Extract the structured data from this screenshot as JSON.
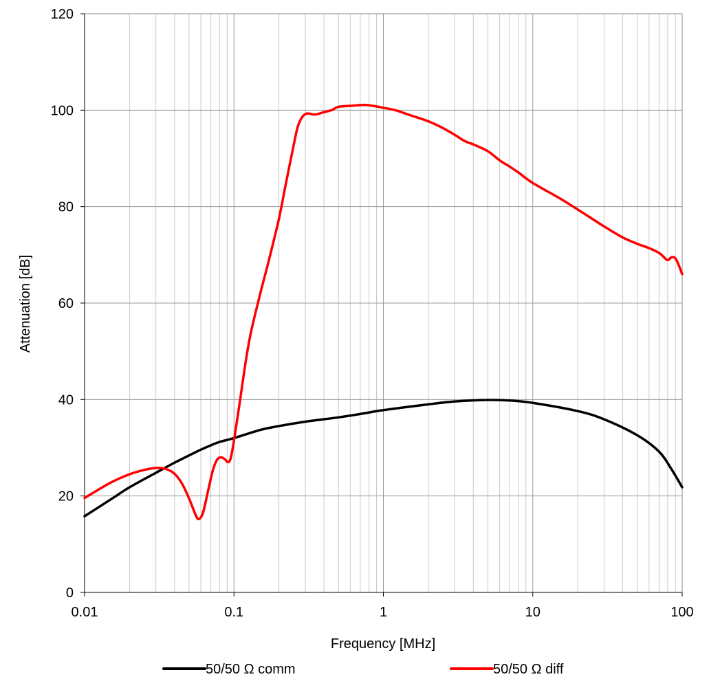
{
  "chart_data": {
    "type": "line",
    "x_scale": "log",
    "xlabel": "Frequency [MHz]",
    "ylabel": "Attenuation [dB]",
    "xlim": [
      0.01,
      100
    ],
    "ylim": [
      0,
      120
    ],
    "x_ticks": [
      0.01,
      0.1,
      1,
      10,
      100
    ],
    "x_tick_labels": [
      "0.01",
      "0.1",
      "1",
      "10",
      "100"
    ],
    "y_ticks": [
      0,
      20,
      40,
      60,
      80,
      100,
      120
    ],
    "y_tick_labels": [
      "0",
      "20",
      "40",
      "60",
      "80",
      "100",
      "120"
    ],
    "grid": true,
    "legend_position": "bottom",
    "series": [
      {
        "name": "50/50 Ω comm",
        "color": "#000000",
        "points": [
          [
            0.01,
            15.8
          ],
          [
            0.015,
            19.3
          ],
          [
            0.02,
            21.8
          ],
          [
            0.03,
            24.8
          ],
          [
            0.04,
            26.9
          ],
          [
            0.05,
            28.4
          ],
          [
            0.06,
            29.6
          ],
          [
            0.07,
            30.5
          ],
          [
            0.08,
            31.2
          ],
          [
            0.1,
            32.0
          ],
          [
            0.15,
            33.7
          ],
          [
            0.2,
            34.5
          ],
          [
            0.3,
            35.4
          ],
          [
            0.5,
            36.3
          ],
          [
            0.7,
            37.0
          ],
          [
            1,
            37.8
          ],
          [
            2,
            39.0
          ],
          [
            3,
            39.6
          ],
          [
            5,
            39.9
          ],
          [
            7,
            39.8
          ],
          [
            10,
            39.3
          ],
          [
            20,
            37.6
          ],
          [
            30,
            35.9
          ],
          [
            50,
            32.6
          ],
          [
            70,
            29.2
          ],
          [
            85,
            25.5
          ],
          [
            100,
            21.8
          ]
        ]
      },
      {
        "name": "50/50 Ω diff",
        "color": "#ff0000",
        "points": [
          [
            0.01,
            19.6
          ],
          [
            0.015,
            22.8
          ],
          [
            0.02,
            24.5
          ],
          [
            0.025,
            25.4
          ],
          [
            0.03,
            25.8
          ],
          [
            0.035,
            25.6
          ],
          [
            0.04,
            24.6
          ],
          [
            0.045,
            22.5
          ],
          [
            0.05,
            19.5
          ],
          [
            0.055,
            16.3
          ],
          [
            0.058,
            15.2
          ],
          [
            0.062,
            16.5
          ],
          [
            0.067,
            21.0
          ],
          [
            0.072,
            25.2
          ],
          [
            0.077,
            27.5
          ],
          [
            0.082,
            28.0
          ],
          [
            0.087,
            27.6
          ],
          [
            0.091,
            27.0
          ],
          [
            0.095,
            27.8
          ],
          [
            0.1,
            31.5
          ],
          [
            0.11,
            40.0
          ],
          [
            0.12,
            48.0
          ],
          [
            0.13,
            54.0
          ],
          [
            0.15,
            62.0
          ],
          [
            0.17,
            68.5
          ],
          [
            0.2,
            77.5
          ],
          [
            0.22,
            84.0
          ],
          [
            0.25,
            92.5
          ],
          [
            0.27,
            97.0
          ],
          [
            0.3,
            99.2
          ],
          [
            0.35,
            99.1
          ],
          [
            0.4,
            99.6
          ],
          [
            0.45,
            100.0
          ],
          [
            0.5,
            100.7
          ],
          [
            0.6,
            100.9
          ],
          [
            0.75,
            101.1
          ],
          [
            0.85,
            100.9
          ],
          [
            1,
            100.5
          ],
          [
            1.2,
            100.0
          ],
          [
            1.5,
            99.0
          ],
          [
            2,
            97.7
          ],
          [
            2.5,
            96.3
          ],
          [
            3,
            94.9
          ],
          [
            3.5,
            93.6
          ],
          [
            4,
            92.9
          ],
          [
            5,
            91.5
          ],
          [
            6,
            89.6
          ],
          [
            7,
            88.3
          ],
          [
            8,
            87.1
          ],
          [
            10,
            84.9
          ],
          [
            15,
            81.8
          ],
          [
            20,
            79.4
          ],
          [
            30,
            75.9
          ],
          [
            40,
            73.6
          ],
          [
            50,
            72.3
          ],
          [
            60,
            71.4
          ],
          [
            70,
            70.4
          ],
          [
            75,
            69.6
          ],
          [
            80,
            68.9
          ],
          [
            85,
            69.5
          ],
          [
            90,
            69.3
          ],
          [
            95,
            67.8
          ],
          [
            100,
            66.0
          ]
        ]
      }
    ]
  }
}
